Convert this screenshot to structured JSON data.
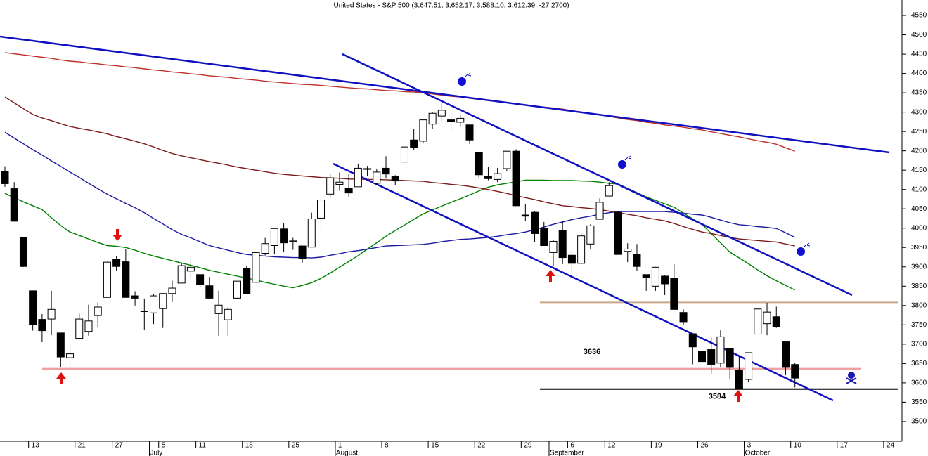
{
  "chart_data": {
    "type": "candlestick",
    "title": "United States - S&P 500 (3,647.51, 3,652.17, 3,588.10, 3,612.39, -27.2700)",
    "categories": [
      null,
      null,
      null,
      "13",
      null,
      null,
      null,
      null,
      "21",
      null,
      null,
      null,
      "27",
      null,
      null,
      null,
      null,
      "5",
      null,
      null,
      null,
      "11",
      null,
      null,
      null,
      null,
      "18",
      null,
      null,
      null,
      null,
      "25",
      null,
      null,
      null,
      null,
      "1",
      null,
      null,
      null,
      null,
      "8",
      null,
      null,
      null,
      null,
      "15",
      null,
      null,
      null,
      null,
      "22",
      null,
      null,
      null,
      null,
      "29",
      null,
      null,
      null,
      null,
      "6",
      null,
      null,
      null,
      "12",
      null,
      null,
      null,
      null,
      "19",
      null,
      null,
      null,
      null,
      "26",
      null,
      null,
      null,
      null,
      "3",
      null,
      null,
      null,
      null,
      "10",
      null,
      null,
      null,
      null,
      "17",
      null,
      null,
      null,
      null,
      "24"
    ],
    "months": [
      null,
      null,
      null,
      null,
      null,
      null,
      null,
      null,
      null,
      null,
      null,
      null,
      null,
      null,
      null,
      null,
      "July",
      null,
      null,
      null,
      null,
      null,
      null,
      null,
      null,
      null,
      null,
      null,
      null,
      null,
      null,
      null,
      null,
      null,
      null,
      null,
      "August",
      null,
      null,
      null,
      null,
      null,
      null,
      null,
      null,
      null,
      null,
      null,
      null,
      null,
      null,
      null,
      null,
      null,
      null,
      null,
      null,
      null,
      null,
      "September",
      null,
      null,
      null,
      null,
      null,
      null,
      null,
      null,
      null,
      null,
      null,
      null,
      null,
      null,
      null,
      null,
      null,
      null,
      null,
      null,
      "October",
      null,
      null,
      null,
      null,
      null,
      null,
      null,
      null,
      null,
      null,
      null,
      null,
      null,
      null,
      null
    ],
    "open": [
      4147,
      4102,
      3975,
      3838,
      3764,
      3765,
      3729,
      3665,
      3715,
      3733,
      3774,
      3821,
      3920,
      3913,
      3825,
      3786,
      3781,
      3792,
      3831,
      3858,
      3889,
      3880,
      3851,
      3779,
      3763,
      3819,
      3896,
      3860,
      3935,
      3955,
      3998,
      3965,
      3954,
      3951,
      4026,
      4088,
      4113,
      4104,
      4107,
      4154,
      4116,
      4155,
      4133,
      4171,
      4228,
      4225,
      4269,
      4290,
      4280,
      4274,
      4267,
      4195,
      4133,
      4126,
      4154,
      4199,
      4034,
      4041,
      4000,
      3937,
      3994,
      3930,
      3909,
      3959,
      4023,
      4083,
      4041,
      3940,
      3932,
      3880,
      3850,
      3876,
      3871,
      3782,
      3727,
      3682,
      3686,
      3651,
      3688,
      3633,
      3609,
      3726,
      3753,
      3771,
      3706,
      3647.51,
      null,
      null,
      null,
      null,
      null,
      null,
      null,
      null,
      null,
      null
    ],
    "high": [
      4160,
      4119,
      3976,
      3838,
      3778,
      3838,
      3729,
      3707,
      3779,
      3802,
      3808,
      3913,
      3928,
      3945,
      3837,
      3818,
      3829,
      3832,
      3864,
      3910,
      3918,
      3880,
      3874,
      3838,
      3796,
      3863,
      3903,
      3939,
      3975,
      3999,
      4013,
      3975,
      3954,
      4040,
      4078,
      4140,
      4144,
      4141,
      4167,
      4161,
      4152,
      4186,
      4137,
      4211,
      4257,
      4280,
      4301,
      4325,
      4302,
      4292,
      4267,
      4195,
      4159,
      4156,
      4200,
      4204,
      4063,
      4044,
      4016,
      3970,
      4018,
      3942,
      3987,
      4010,
      4077,
      4119,
      4045,
      3961,
      3959,
      3880,
      3900,
      3878,
      3907,
      3790,
      3727,
      3716,
      3717,
      3736,
      3688,
      3671,
      3679,
      3791,
      3807,
      3797,
      3706,
      3652.17,
      null,
      null,
      null,
      null,
      null,
      null,
      null,
      null,
      null,
      null
    ],
    "low": [
      4107,
      4017,
      3900,
      3735,
      3705,
      3723,
      3640,
      3636,
      3715,
      3722,
      3743,
      3821,
      3889,
      3820,
      3800,
      3738,
      3752,
      3742,
      3809,
      3858,
      3869,
      3847,
      3818,
      3722,
      3721,
      3818,
      3831,
      3860,
      3930,
      3933,
      3938,
      3944,
      3910,
      3951,
      3990,
      4079,
      4097,
      4080,
      4107,
      4135,
      4111,
      4128,
      4112,
      4170,
      4201,
      4219,
      4256,
      4277,
      4253,
      4262,
      4218,
      4129,
      4124,
      4119,
      4147,
      4057,
      4018,
      3965,
      3954,
      3903,
      3907,
      3886,
      3906,
      3945,
      4023,
      4083,
      3933,
      3912,
      3889,
      3838,
      3838,
      3827,
      3789,
      3749,
      3648,
      3644,
      3623,
      3641,
      3610,
      3584,
      3603,
      3726,
      3723,
      3742,
      3620,
      3588.1,
      null,
      null,
      null,
      null,
      null,
      null,
      null,
      null,
      null,
      null
    ],
    "close": [
      4115,
      4018,
      3901,
      3750,
      3735,
      3790,
      3667,
      3675,
      3765,
      3760,
      3796,
      3912,
      3901,
      3821,
      3819,
      3785,
      3825,
      3831,
      3845,
      3903,
      3899,
      3854,
      3819,
      3801,
      3790,
      3863,
      3831,
      3937,
      3960,
      3999,
      3962,
      3967,
      3921,
      4024,
      4073,
      4130,
      4119,
      4091,
      4155,
      4152,
      4145,
      4140,
      4122,
      4210,
      4208,
      4280,
      4297,
      4305,
      4275,
      4284,
      4228,
      4138,
      4128,
      4141,
      4199,
      4058,
      4031,
      3986,
      3955,
      3966,
      3924,
      3909,
      3980,
      4006,
      4067,
      4110,
      3932,
      3946,
      3901,
      3873,
      3899,
      3856,
      3790,
      3758,
      3693,
      3655,
      3648,
      3719,
      3640,
      3586,
      3678,
      3791,
      3783,
      3745,
      3640,
      3612.39,
      null,
      null,
      null,
      null,
      null,
      null,
      null,
      null,
      null,
      null
    ],
    "up_color": "#ffffff",
    "down_color": "#000000",
    "moving_averages": [
      {
        "color": "#008000",
        "values": [
          4090,
          4079,
          4068,
          4058,
          4048,
          4027,
          4007,
          3990,
          3981,
          3972,
          3963,
          3955,
          3953,
          3950,
          3943,
          3935,
          3928,
          3922,
          3916,
          3910,
          3904,
          3898,
          3891,
          3886,
          3881,
          3876,
          3871,
          3866,
          3860,
          3855,
          3850,
          3846,
          3852,
          3859,
          3870,
          3884,
          3899,
          3914,
          3929,
          3946,
          3962,
          3979,
          3994,
          4008,
          4023,
          4037,
          4047,
          4057,
          4067,
          4076,
          4086,
          4096,
          4106,
          4112,
          4116,
          4120,
          4124,
          4124,
          4124,
          4123,
          4123,
          4123,
          4122,
          4121,
          4119,
          4116,
          4114,
          4103,
          4092,
          4081,
          4072,
          4063,
          4054,
          4039,
          4024,
          4010,
          3986,
          3962,
          3938,
          3923,
          3908,
          3892,
          3877,
          3864,
          3852,
          3840,
          null,
          null,
          null,
          null,
          null,
          null,
          null,
          null,
          null,
          null
        ]
      },
      {
        "color": "#1a1aa0",
        "values": [
          4248,
          4233,
          4218,
          4203,
          4189,
          4174,
          4160,
          4145,
          4131,
          4116,
          4102,
          4088,
          4076,
          4064,
          4053,
          4040,
          4025,
          4011,
          3996,
          3984,
          3975,
          3965,
          3955,
          3949,
          3943,
          3937,
          3932,
          3930,
          3928,
          3926,
          3925,
          3924,
          3924,
          3923,
          3925,
          3930,
          3934,
          3939,
          3942,
          3946,
          3950,
          3954,
          3955,
          3956,
          3957,
          3958,
          3961,
          3965,
          3968,
          3971,
          3972,
          3974,
          3976,
          3979,
          3983,
          3986,
          3990,
          3996,
          4003,
          4010,
          4016,
          4022,
          4027,
          4031,
          4036,
          4040,
          4043,
          4043,
          4043,
          4043,
          4043,
          4043,
          4041,
          4039,
          4036,
          4034,
          4028,
          4021,
          4014,
          4009,
          4007,
          4004,
          4002,
          3999,
          3988,
          3976,
          null,
          null,
          null,
          null,
          null,
          null,
          null,
          null,
          null,
          null
        ]
      },
      {
        "color": "#7a1a1a",
        "values": [
          4339,
          4324,
          4309,
          4294,
          4285,
          4278,
          4270,
          4263,
          4258,
          4254,
          4249,
          4244,
          4237,
          4231,
          4225,
          4218,
          4210,
          4201,
          4193,
          4187,
          4182,
          4177,
          4172,
          4168,
          4163,
          4158,
          4154,
          4150,
          4146,
          4142,
          4139,
          4137,
          4135,
          4133,
          4131,
          4130,
          4129,
          4127,
          4127,
          4126,
          4126,
          4125,
          4124,
          4123,
          4122,
          4121,
          4118,
          4116,
          4113,
          4111,
          4108,
          4104,
          4100,
          4095,
          4090,
          4084,
          4079,
          4074,
          4068,
          4063,
          4058,
          4056,
          4053,
          4051,
          4048,
          4044,
          4040,
          4036,
          4032,
          4027,
          4023,
          4019,
          4012,
          4004,
          3997,
          3990,
          3986,
          3981,
          3976,
          3972,
          3970,
          3968,
          3966,
          3964,
          3959,
          3954,
          null,
          null,
          null,
          null,
          null,
          null,
          null,
          null,
          null,
          null
        ]
      },
      {
        "color": "#c0302a",
        "values": [
          4454,
          4451,
          4448,
          4445,
          4442,
          4439,
          4435,
          4432,
          4430,
          4427,
          4425,
          4422,
          4420,
          4417,
          4415,
          4412,
          4409,
          4407,
          4404,
          4402,
          4399,
          4397,
          4394,
          4392,
          4390,
          4387,
          4385,
          4383,
          4380,
          4378,
          4376,
          4374,
          4372,
          4371,
          4369,
          4367,
          4365,
          4363,
          4361,
          4360,
          4358,
          4356,
          4355,
          4353,
          4352,
          4350,
          4347,
          4344,
          4341,
          4339,
          4336,
          4333,
          4330,
          4327,
          4325,
          4322,
          4319,
          4316,
          4313,
          4311,
          4308,
          4304,
          4300,
          4296,
          4293,
          4289,
          4285,
          4281,
          4278,
          4274,
          4271,
          4267,
          4264,
          4261,
          4257,
          4254,
          4249,
          4245,
          4240,
          4236,
          4231,
          4226,
          4222,
          4217,
          4208,
          4199,
          null,
          null,
          null,
          null,
          null,
          null,
          null,
          null,
          null,
          null
        ]
      }
    ],
    "levels": [
      {
        "value": 3636,
        "color": "#f0a0a0",
        "labeled": true
      },
      {
        "value": 3808,
        "color": "#c8a888",
        "labeled": false
      },
      {
        "value": 3584,
        "color": "#000000",
        "labeled": true
      }
    ],
    "ylim": [
      3449,
      4590
    ],
    "yticks": [
      3500,
      3550,
      3600,
      3650,
      3700,
      3750,
      3800,
      3850,
      3900,
      3950,
      4000,
      4050,
      4100,
      4150,
      4200,
      4250,
      4300,
      4350,
      4400,
      4450,
      4500,
      4550
    ]
  }
}
